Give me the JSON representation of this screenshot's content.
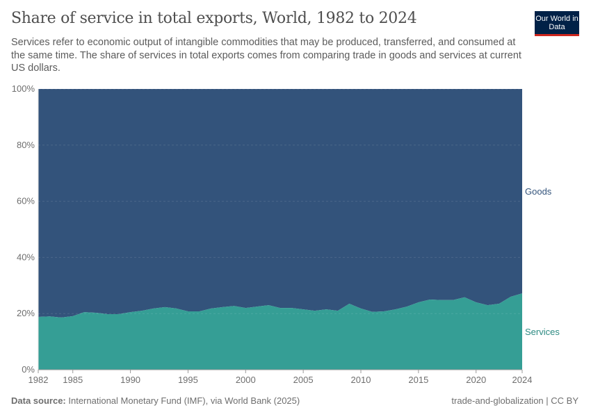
{
  "header": {
    "title": "Share of service in total exports, World, 1982 to 2024",
    "subtitle": "Services refer to economic output of intangible commodities that may be produced, transferred, and consumed at the same time. The share of services in total exports comes from comparing trade in goods and services at current US dollars.",
    "logo": "Our World in Data"
  },
  "footer": {
    "source_label": "Data source:",
    "source": "International Monetary Fund (IMF), via World Bank (2025)",
    "license": "trade-and-globalization | CC BY"
  },
  "chart_data": {
    "type": "area",
    "stacked": true,
    "title": "Share of service in total exports, World, 1982 to 2024",
    "ylim": [
      0,
      100
    ],
    "yticks": [
      "0%",
      "20%",
      "40%",
      "60%",
      "80%",
      "100%"
    ],
    "xticks": [
      "1982",
      "1985",
      "1990",
      "1995",
      "2000",
      "2005",
      "2010",
      "2015",
      "2020",
      "2024"
    ],
    "x": [
      1982,
      1983,
      1984,
      1985,
      1986,
      1987,
      1988,
      1989,
      1990,
      1991,
      1992,
      1993,
      1994,
      1995,
      1996,
      1997,
      1998,
      1999,
      2000,
      2001,
      2002,
      2003,
      2004,
      2005,
      2006,
      2007,
      2008,
      2009,
      2010,
      2011,
      2012,
      2013,
      2014,
      2015,
      2016,
      2017,
      2018,
      2019,
      2020,
      2021,
      2022,
      2023,
      2024
    ],
    "series": [
      {
        "name": "Services",
        "color": "#359e95",
        "values": [
          18.8,
          19,
          18.6,
          19.1,
          20.5,
          20.3,
          19.8,
          19.8,
          20.5,
          21,
          21.8,
          22.3,
          21.8,
          20.8,
          20.8,
          21.8,
          22.3,
          22.7,
          22,
          22.5,
          23,
          22,
          22,
          21.5,
          21,
          21.5,
          21,
          23.5,
          21.8,
          20.6,
          20.8,
          21.5,
          22.5,
          24,
          25,
          24.8,
          24.8,
          25.8,
          24,
          23,
          23.5,
          26,
          27.2
        ]
      },
      {
        "name": "Goods",
        "color": "#33537b",
        "values": "remainder to 100%"
      }
    ],
    "legend": "right"
  }
}
